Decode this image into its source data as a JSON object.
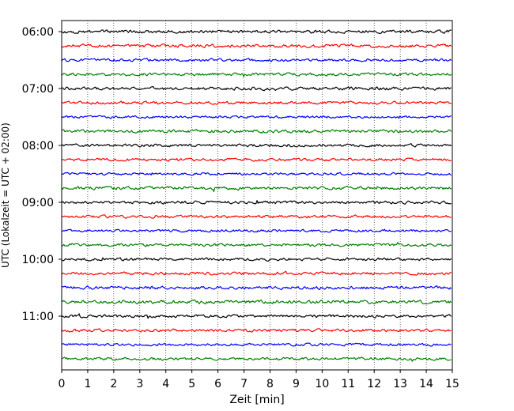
{
  "chart_data": {
    "type": "line",
    "title": "",
    "xlabel": "Zeit  [min]",
    "ylabel": "UTC (Lokalzeit = UTC + 02:00)",
    "xlim": [
      0,
      15
    ],
    "x_ticks": [
      "0",
      "1",
      "2",
      "3",
      "4",
      "5",
      "6",
      "7",
      "8",
      "9",
      "10",
      "11",
      "12",
      "13",
      "14",
      "15"
    ],
    "y_ticks": [
      "06:00",
      "07:00",
      "08:00",
      "09:00",
      "10:00",
      "11:00"
    ],
    "grid": "vertical dotted lines at each minute",
    "legend": "none",
    "trace_interval_minutes": 15,
    "trace_start": "06:00",
    "trace_count": 24,
    "trace_colors": [
      "#000000",
      "#ff0000",
      "#0000ff",
      "#008000"
    ],
    "series": [
      {
        "start": "06:00",
        "color": "#000000",
        "amplitude": 1.0
      },
      {
        "start": "06:15",
        "color": "#ff0000",
        "amplitude": 1.0
      },
      {
        "start": "06:30",
        "color": "#0000ff",
        "amplitude": 0.9
      },
      {
        "start": "06:45",
        "color": "#008000",
        "amplitude": 0.9
      },
      {
        "start": "07:00",
        "color": "#000000",
        "amplitude": 1.0
      },
      {
        "start": "07:15",
        "color": "#ff0000",
        "amplitude": 0.9
      },
      {
        "start": "07:30",
        "color": "#0000ff",
        "amplitude": 0.8
      },
      {
        "start": "07:45",
        "color": "#008000",
        "amplitude": 1.0
      },
      {
        "start": "08:00",
        "color": "#000000",
        "amplitude": 0.9
      },
      {
        "start": "08:15",
        "color": "#ff0000",
        "amplitude": 0.9
      },
      {
        "start": "08:30",
        "color": "#0000ff",
        "amplitude": 0.8
      },
      {
        "start": "08:45",
        "color": "#008000",
        "amplitude": 1.0
      },
      {
        "start": "09:00",
        "color": "#000000",
        "amplitude": 0.9
      },
      {
        "start": "09:15",
        "color": "#ff0000",
        "amplitude": 0.9
      },
      {
        "start": "09:30",
        "color": "#0000ff",
        "amplitude": 0.8
      },
      {
        "start": "09:45",
        "color": "#008000",
        "amplitude": 0.9
      },
      {
        "start": "10:00",
        "color": "#000000",
        "amplitude": 0.9
      },
      {
        "start": "10:15",
        "color": "#ff0000",
        "amplitude": 0.9
      },
      {
        "start": "10:30",
        "color": "#0000ff",
        "amplitude": 1.0
      },
      {
        "start": "10:45",
        "color": "#008000",
        "amplitude": 1.1
      },
      {
        "start": "11:00",
        "color": "#000000",
        "amplitude": 0.9
      },
      {
        "start": "11:15",
        "color": "#ff0000",
        "amplitude": 0.9
      },
      {
        "start": "11:30",
        "color": "#0000ff",
        "amplitude": 0.8
      },
      {
        "start": "11:45",
        "color": "#008000",
        "amplitude": 0.9
      }
    ]
  }
}
